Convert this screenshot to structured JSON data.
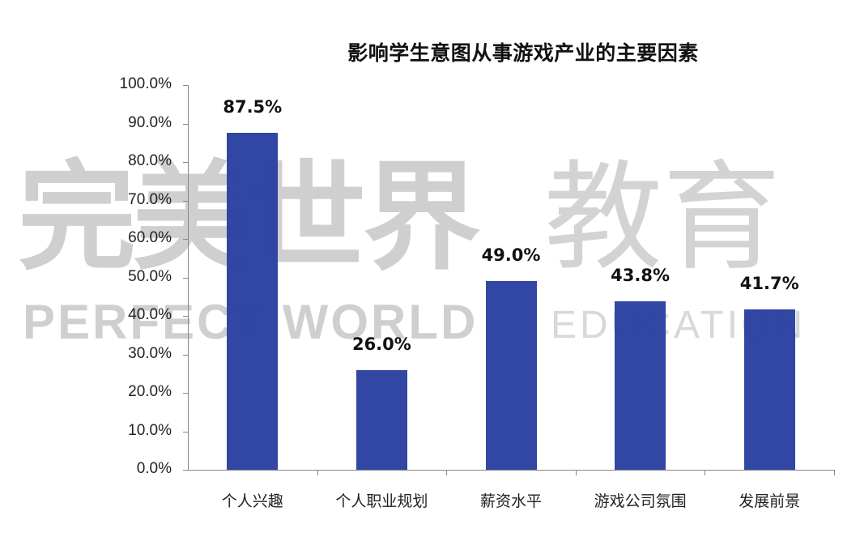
{
  "chart_data": {
    "type": "bar",
    "title": "影响学生意图从事游戏产业的主要因素",
    "xlabel": "",
    "ylabel": "",
    "categories": [
      "个人兴趣",
      "个人职业规划",
      "薪资水平",
      "游戏公司氛围",
      "发展前景"
    ],
    "values": [
      87.5,
      26.0,
      49.0,
      43.8,
      41.7
    ],
    "value_labels": [
      "87.5%",
      "26.0%",
      "49.0%",
      "43.8%",
      "41.7%"
    ],
    "ylim": [
      0,
      100
    ],
    "yticks": [
      "0.0%",
      "10.0%",
      "20.0%",
      "30.0%",
      "40.0%",
      "50.0%",
      "60.0%",
      "70.0%",
      "80.0%",
      "90.0%",
      "100.0%"
    ],
    "grid": false,
    "legend": null,
    "bar_color": "#2a41a0"
  },
  "watermark": {
    "cn_brand": "完美世界",
    "en_brand": "PERFECT WORLD",
    "cn_sub": "教育",
    "en_sub": "EDUCATION"
  }
}
